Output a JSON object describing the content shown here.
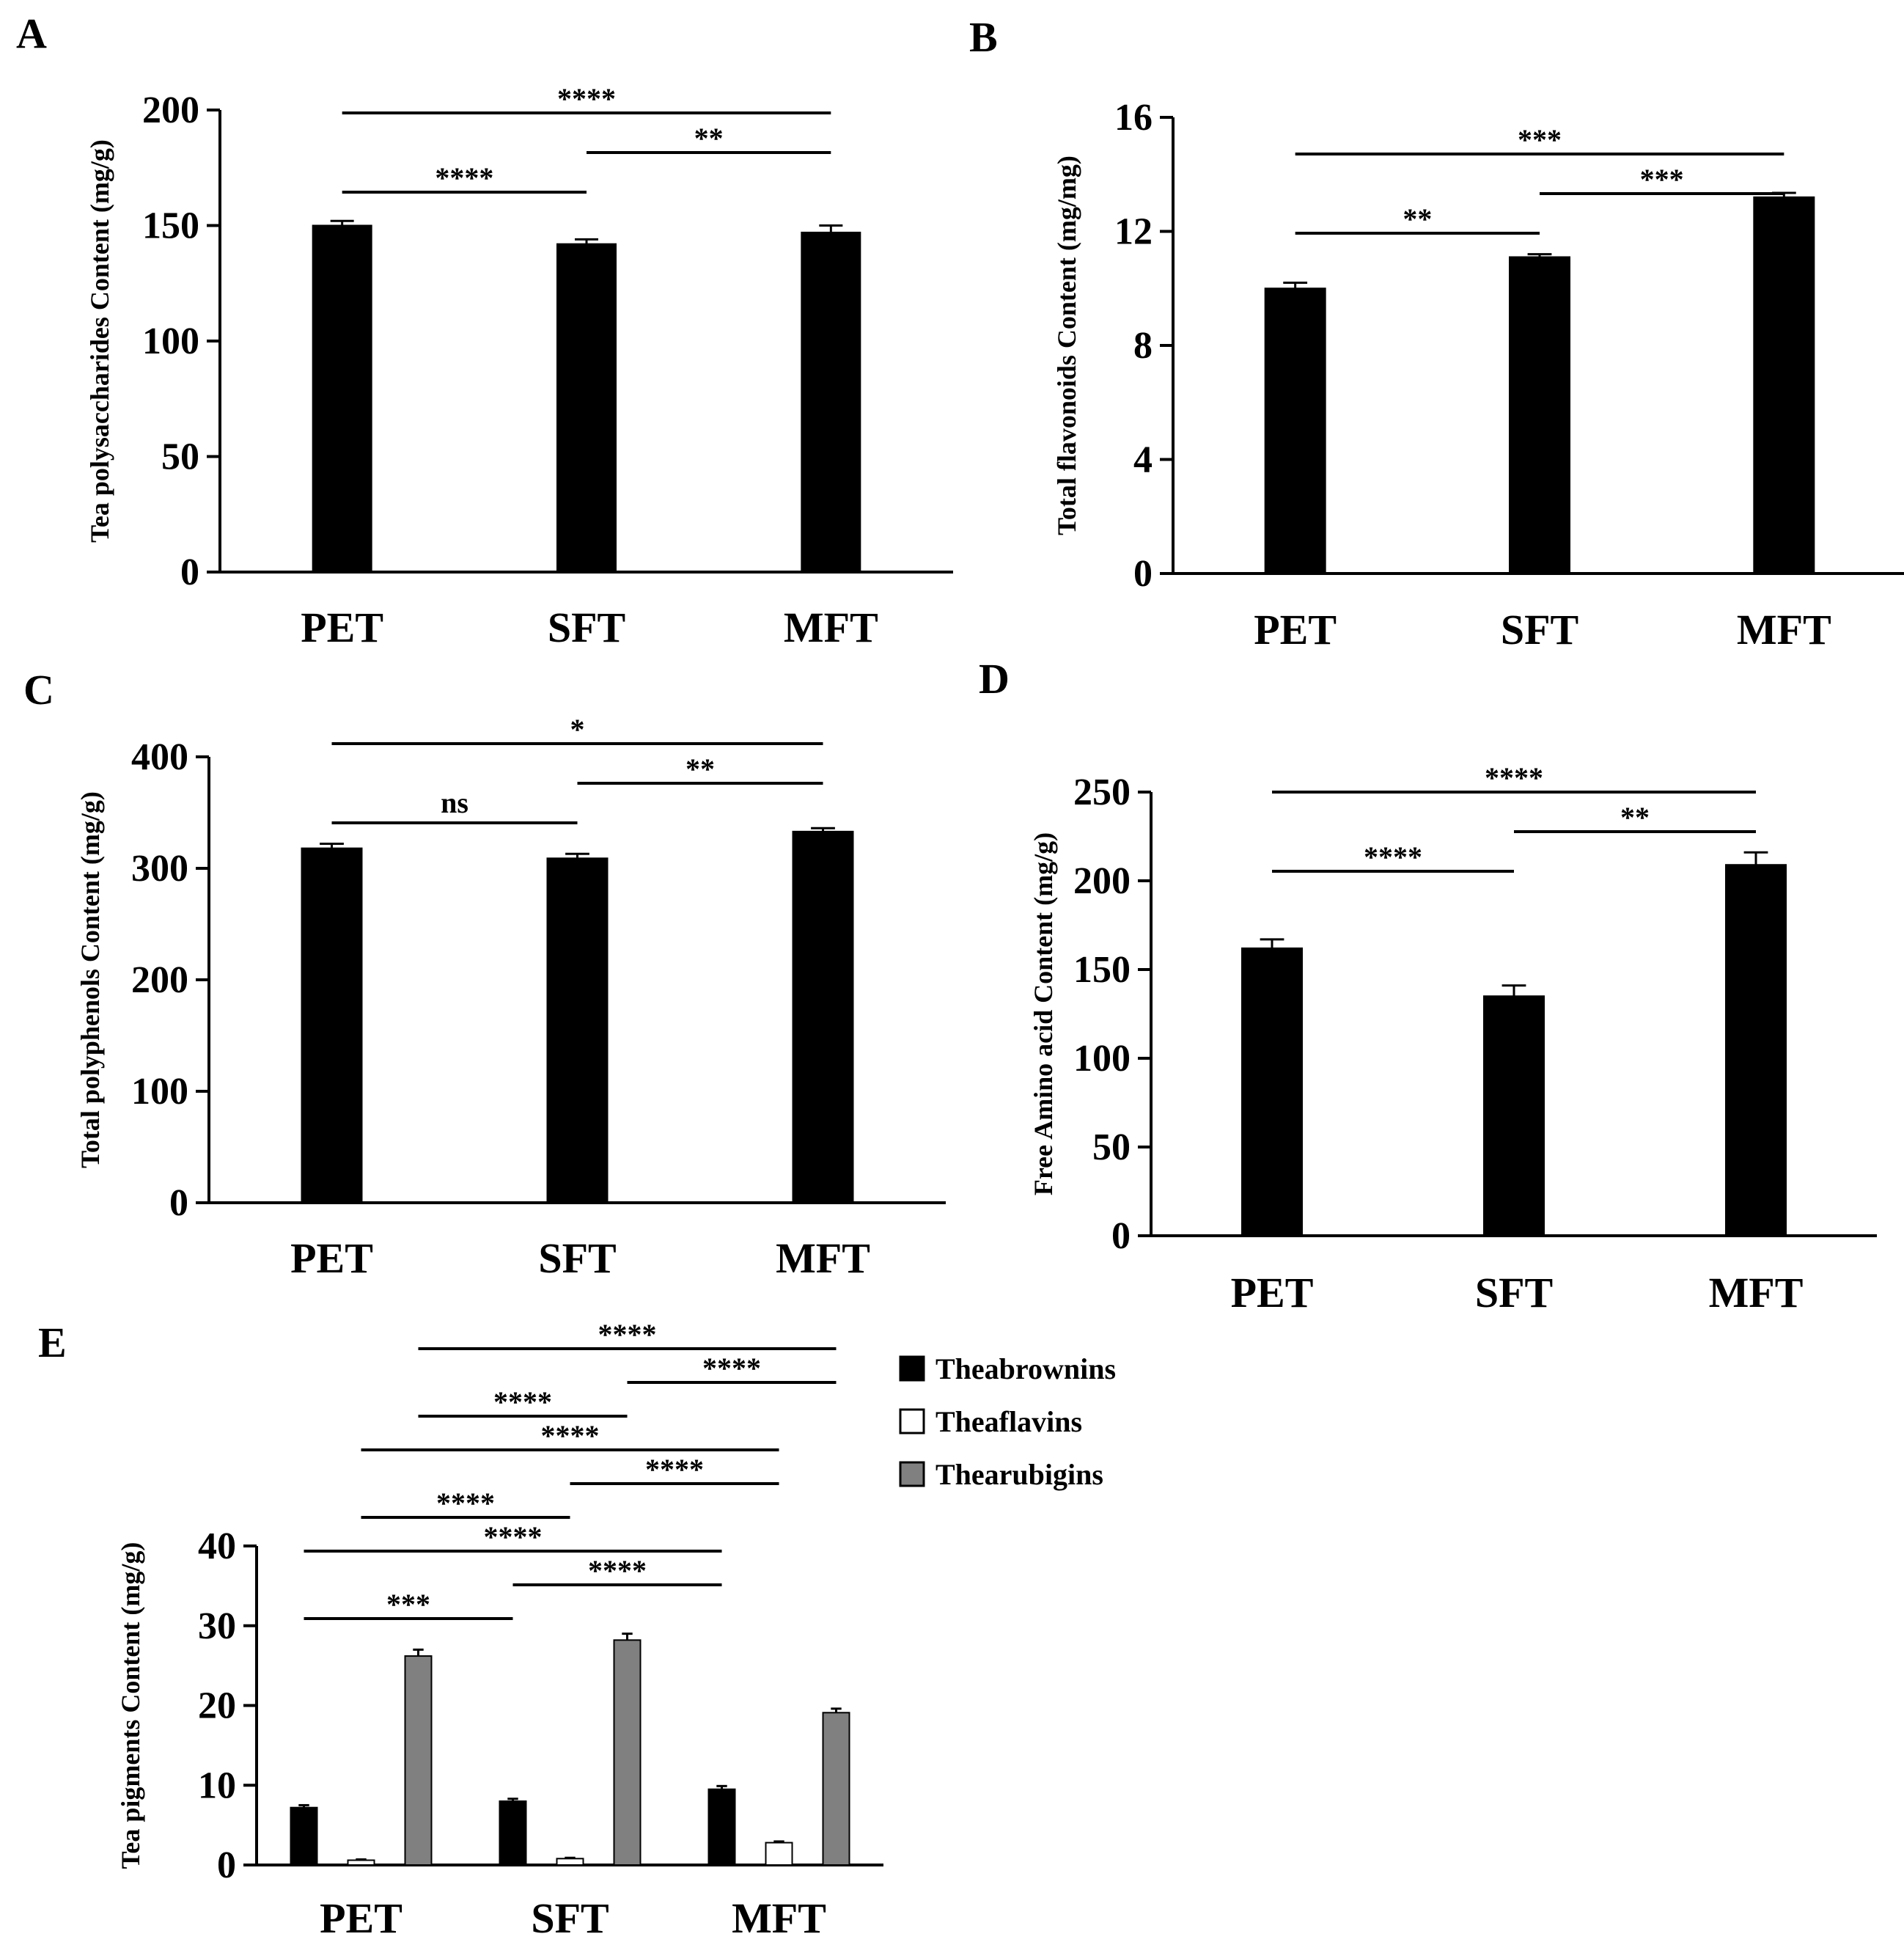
{
  "colors": {
    "theabrownins": "#000000",
    "theaflavins": "#ffffff",
    "thearubigins": "#808080",
    "axis": "#000000"
  },
  "chart_data": [
    {
      "panel": "A",
      "type": "bar",
      "title": "",
      "xlabel": "",
      "ylabel": "Tea polysaccharides Content (mg/g)",
      "categories": [
        "PET",
        "SFT",
        "MFT"
      ],
      "ylim": [
        0,
        200
      ],
      "yticks": [
        0,
        50,
        100,
        150,
        200
      ],
      "series": [
        {
          "name": "",
          "color": "#000000",
          "values": [
            150,
            142,
            147
          ],
          "errors": [
            2,
            2,
            3
          ]
        }
      ],
      "significance": [
        {
          "from": 0,
          "to": 1,
          "label": "****",
          "level": 0
        },
        {
          "from": 1,
          "to": 2,
          "label": "**",
          "level": 1
        },
        {
          "from": 0,
          "to": 2,
          "label": "****",
          "level": 2
        }
      ]
    },
    {
      "panel": "B",
      "type": "bar",
      "title": "",
      "xlabel": "",
      "ylabel": "Total flavonoids Content (mg/mg)",
      "categories": [
        "PET",
        "SFT",
        "MFT"
      ],
      "ylim": [
        0,
        16
      ],
      "yticks": [
        0,
        4,
        8,
        12,
        16
      ],
      "series": [
        {
          "name": "",
          "color": "#000000",
          "values": [
            10.0,
            11.1,
            13.2
          ],
          "errors": [
            0.2,
            0.1,
            0.15
          ]
        }
      ],
      "significance": [
        {
          "from": 0,
          "to": 1,
          "label": "**",
          "level": 0
        },
        {
          "from": 1,
          "to": 2,
          "label": "***",
          "level": 1
        },
        {
          "from": 0,
          "to": 2,
          "label": "***",
          "level": 2
        }
      ]
    },
    {
      "panel": "C",
      "type": "bar",
      "title": "",
      "xlabel": "",
      "ylabel": "Total polyphenols Content (mg/g)",
      "categories": [
        "PET",
        "SFT",
        "MFT"
      ],
      "ylim": [
        0,
        400
      ],
      "yticks": [
        0,
        100,
        200,
        300,
        400
      ],
      "series": [
        {
          "name": "",
          "color": "#000000",
          "values": [
            318,
            309,
            333
          ],
          "errors": [
            4,
            4,
            3
          ]
        }
      ],
      "significance": [
        {
          "from": 0,
          "to": 1,
          "label": "ns",
          "level": 0
        },
        {
          "from": 1,
          "to": 2,
          "label": "**",
          "level": 1
        },
        {
          "from": 0,
          "to": 2,
          "label": "*",
          "level": 2
        }
      ]
    },
    {
      "panel": "D",
      "type": "bar",
      "title": "",
      "xlabel": "",
      "ylabel": "Free Amino acid Content (mg/g)",
      "categories": [
        "PET",
        "SFT",
        "MFT"
      ],
      "ylim": [
        0,
        250
      ],
      "yticks": [
        0,
        50,
        100,
        150,
        200,
        250
      ],
      "series": [
        {
          "name": "",
          "color": "#000000",
          "values": [
            162,
            135,
            209
          ],
          "errors": [
            5,
            6,
            7
          ]
        }
      ],
      "significance": [
        {
          "from": 0,
          "to": 1,
          "label": "****",
          "level": 0
        },
        {
          "from": 1,
          "to": 2,
          "label": "**",
          "level": 1
        },
        {
          "from": 0,
          "to": 2,
          "label": "****",
          "level": 2
        }
      ]
    },
    {
      "panel": "E",
      "type": "bar",
      "title": "",
      "xlabel": "",
      "ylabel": "Tea pigments Content (mg/g)",
      "categories": [
        "PET",
        "SFT",
        "MFT"
      ],
      "ylim": [
        0,
        40
      ],
      "yticks": [
        0,
        10,
        20,
        30,
        40
      ],
      "legend": "top-right",
      "series": [
        {
          "name": "Theabrownins",
          "color": "#000000",
          "values": [
            7.2,
            8.0,
            9.5
          ],
          "errors": [
            0.3,
            0.3,
            0.4
          ]
        },
        {
          "name": "Theaflavins",
          "color": "#ffffff",
          "values": [
            0.6,
            0.8,
            2.8
          ],
          "errors": [
            0.1,
            0.1,
            0.15
          ]
        },
        {
          "name": "Thearubigins",
          "color": "#808080",
          "values": [
            26.2,
            28.2,
            19.1
          ],
          "errors": [
            0.8,
            0.8,
            0.5
          ]
        }
      ],
      "significance": [
        {
          "series": 0,
          "from": 0,
          "to": 1,
          "label": "***",
          "level": 0
        },
        {
          "series": 0,
          "from": 1,
          "to": 2,
          "label": "****",
          "level": 1
        },
        {
          "series": 0,
          "from": 0,
          "to": 2,
          "label": "****",
          "level": 2
        },
        {
          "series": 1,
          "from": 0,
          "to": 1,
          "label": "****",
          "level": 3
        },
        {
          "series": 1,
          "from": 1,
          "to": 2,
          "label": "****",
          "level": 4
        },
        {
          "series": 1,
          "from": 0,
          "to": 2,
          "label": "****",
          "level": 5
        },
        {
          "series": 2,
          "from": 0,
          "to": 1,
          "label": "****",
          "level": 6
        },
        {
          "series": 2,
          "from": 1,
          "to": 2,
          "label": "****",
          "level": 7
        },
        {
          "series": 2,
          "from": 0,
          "to": 2,
          "label": "****",
          "level": 8
        }
      ]
    }
  ]
}
